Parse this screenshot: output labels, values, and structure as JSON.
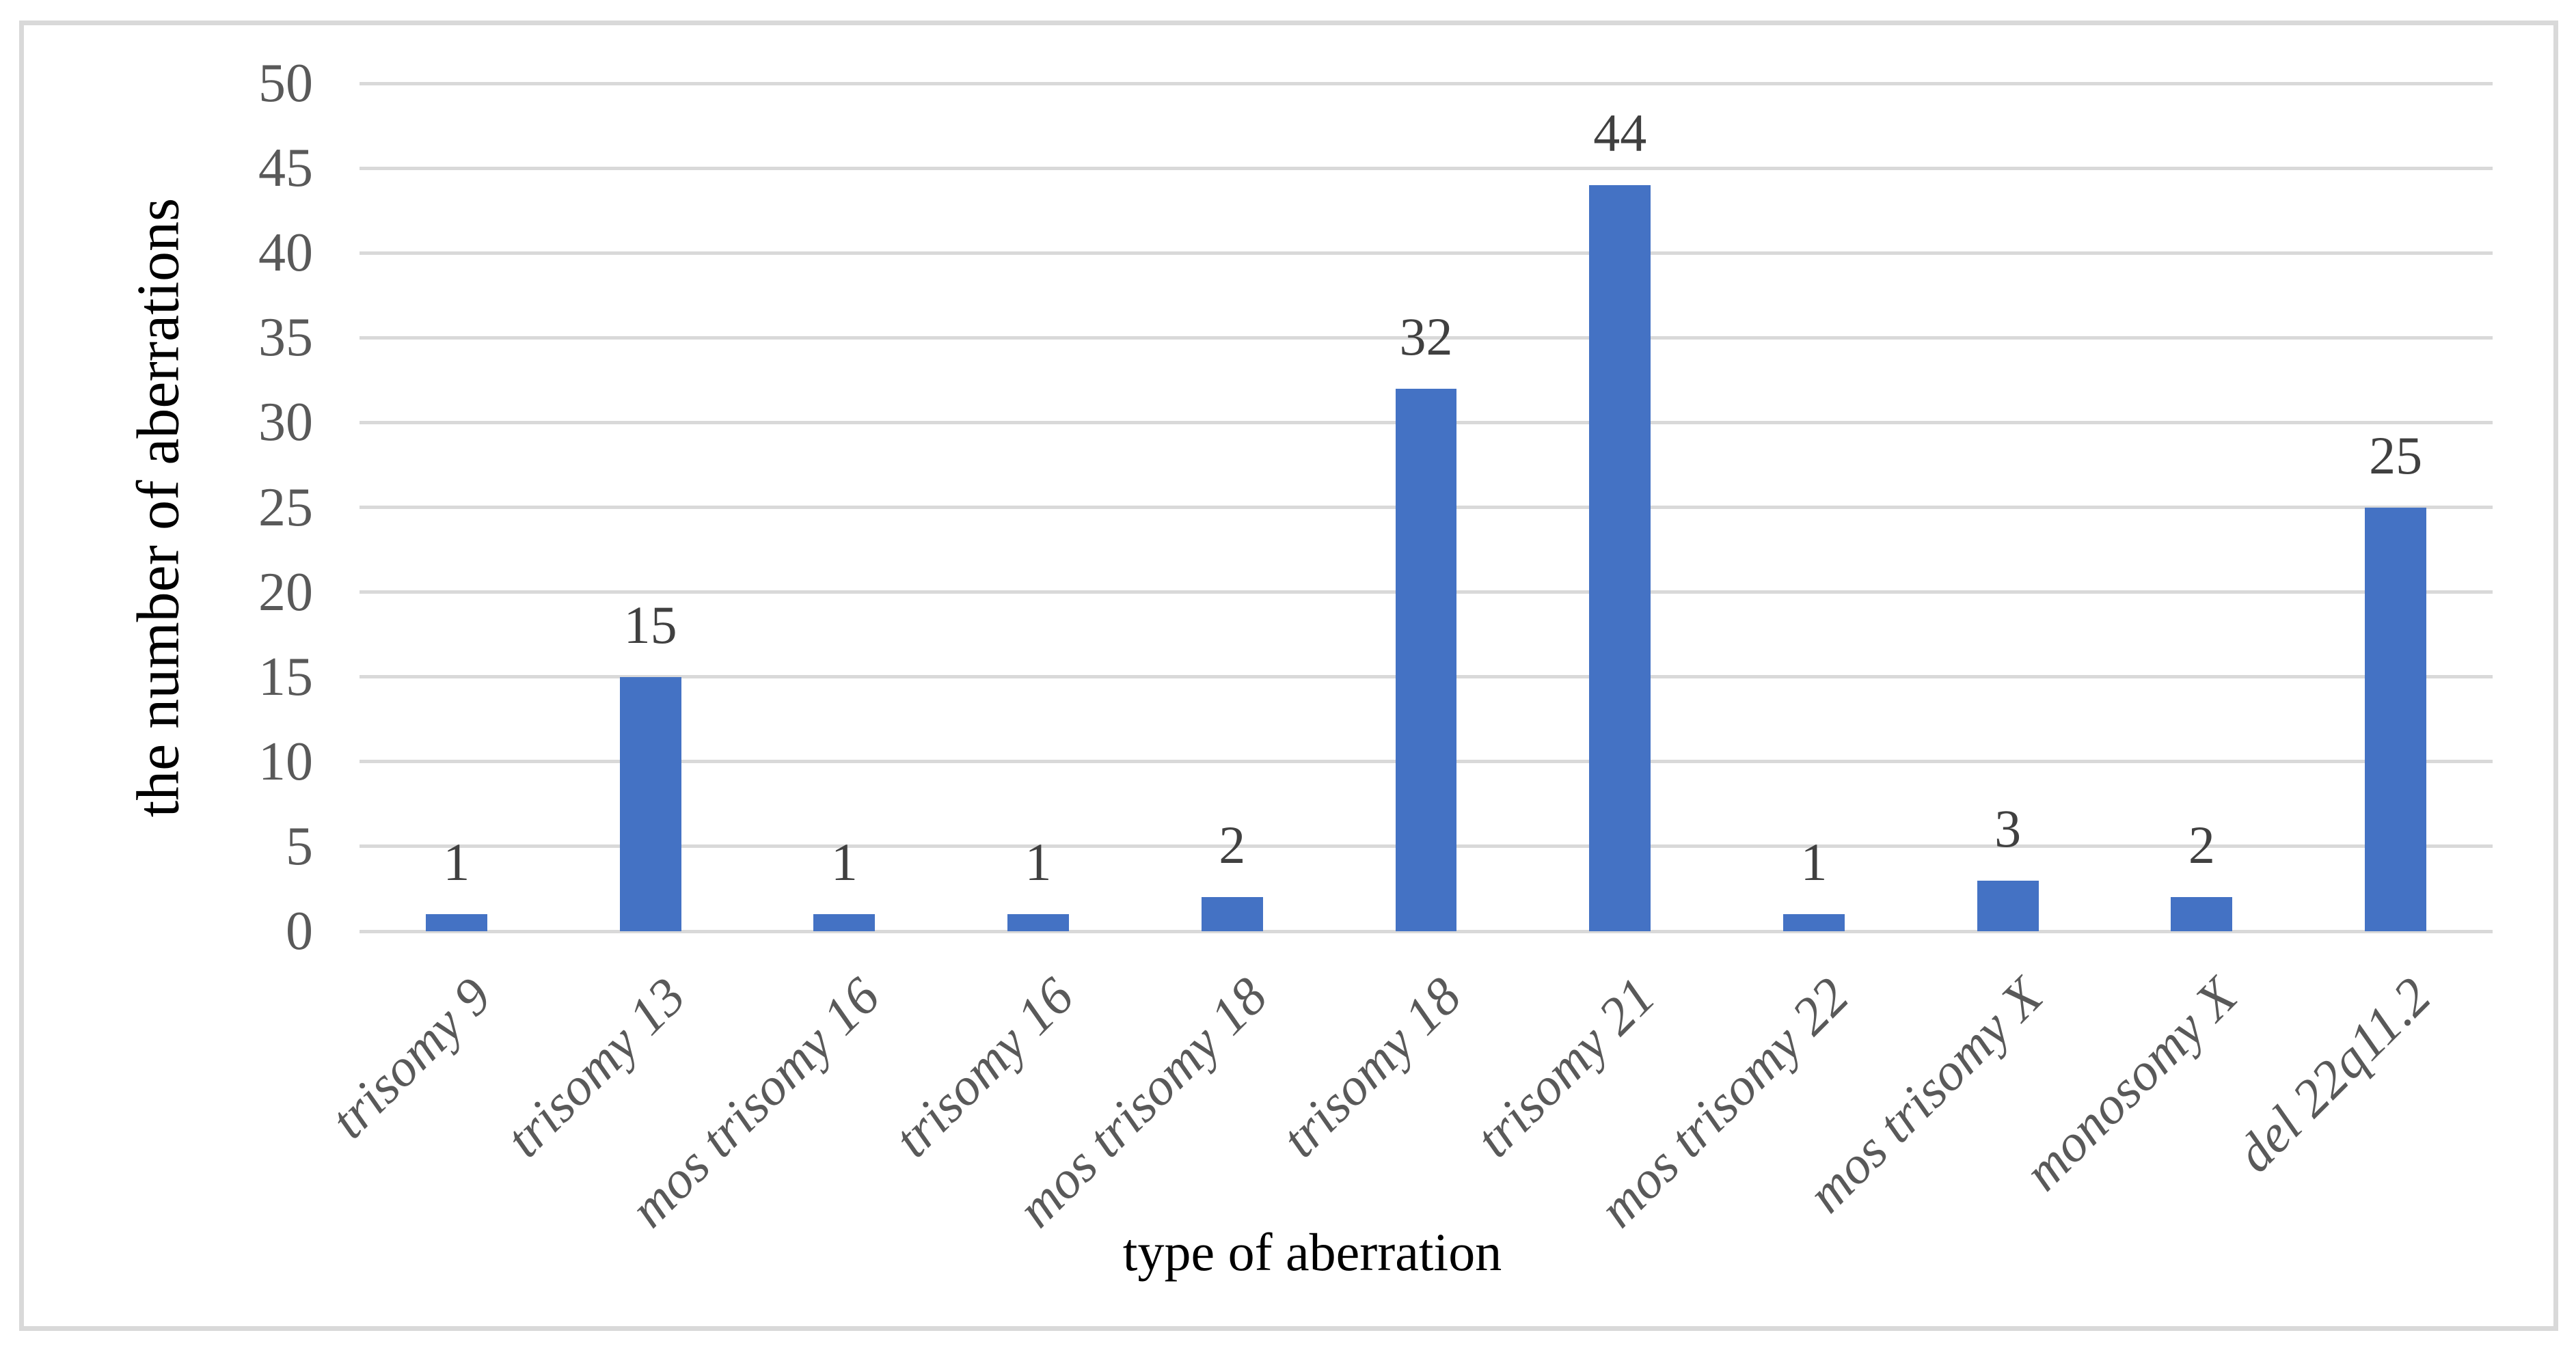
{
  "chart_data": {
    "type": "bar",
    "title": "",
    "categories": [
      "trisomy 9",
      "trisomy 13",
      "mos trisomy 16",
      "trisomy 16",
      "mos trisomy 18",
      "trisomy 18",
      "trisomy 21",
      "mos trisomy 22",
      "mos trisomy X",
      "monosomy X",
      "del 22q11.2"
    ],
    "values": [
      1,
      15,
      1,
      1,
      2,
      32,
      44,
      1,
      3,
      2,
      25
    ],
    "data_labels": [
      "1",
      "15",
      "1",
      "1",
      "2",
      "32",
      "44",
      "1",
      "3",
      "2",
      "25"
    ],
    "xlabel": "type of aberration",
    "ylabel": "the number of aberrations",
    "ylim": [
      0,
      50
    ],
    "yticks": [
      0,
      5,
      10,
      15,
      20,
      25,
      30,
      35,
      40,
      45,
      50
    ],
    "grid": "horizontal",
    "legend": "none",
    "colors": {
      "bar": "#4472C4",
      "gridline": "#D9D9D9",
      "chart_border": "#D9D9D9",
      "tick_label": "#595959",
      "category_label": "#595959",
      "data_label": "#404040",
      "axis_title": "#000000",
      "background": "#FFFFFF"
    }
  }
}
